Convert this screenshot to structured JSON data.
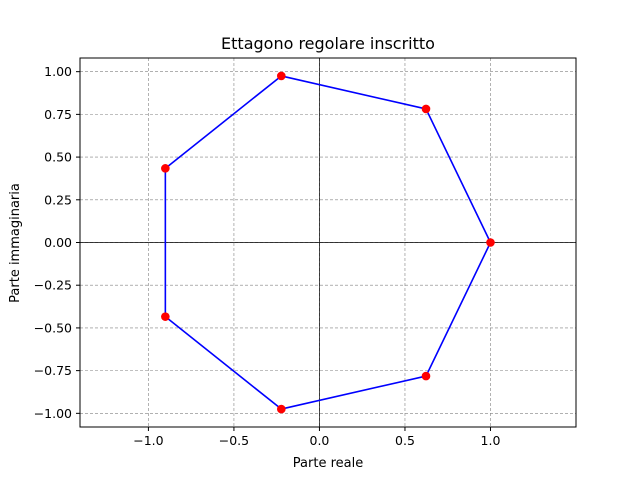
{
  "chart_data": {
    "type": "line",
    "title": "Ettagono regolare inscritto",
    "xlabel": "Parte reale",
    "ylabel": "Parte immaginaria",
    "xlim": [
      -1.4,
      1.5
    ],
    "ylim": [
      -1.08,
      1.08
    ],
    "grid": true,
    "grid_style": "dashed",
    "reference_lines": {
      "x": 0,
      "y": 0
    },
    "x_ticks": [
      -1.0,
      -0.5,
      0.0,
      0.5,
      1.0
    ],
    "x_tick_labels": [
      "−1.0",
      "−0.5",
      "0.0",
      "0.5",
      "1.0"
    ],
    "y_ticks": [
      1.0,
      0.75,
      0.5,
      0.25,
      0.0,
      -0.25,
      -0.5,
      -0.75,
      -1.0
    ],
    "y_tick_labels": [
      "1.00",
      "0.75",
      "0.50",
      "0.25",
      "0.00",
      "−0.25",
      "−0.50",
      "−0.75",
      "−1.00"
    ],
    "series": [
      {
        "line_color": "#0000ff",
        "marker_color": "#ff0000",
        "closed": true,
        "points": [
          {
            "x": 1.0,
            "y": 0.0
          },
          {
            "x": 0.623,
            "y": 0.782
          },
          {
            "x": -0.223,
            "y": 0.975
          },
          {
            "x": -0.901,
            "y": 0.434
          },
          {
            "x": -0.901,
            "y": -0.434
          },
          {
            "x": -0.223,
            "y": -0.975
          },
          {
            "x": 0.623,
            "y": -0.782
          }
        ]
      }
    ]
  }
}
